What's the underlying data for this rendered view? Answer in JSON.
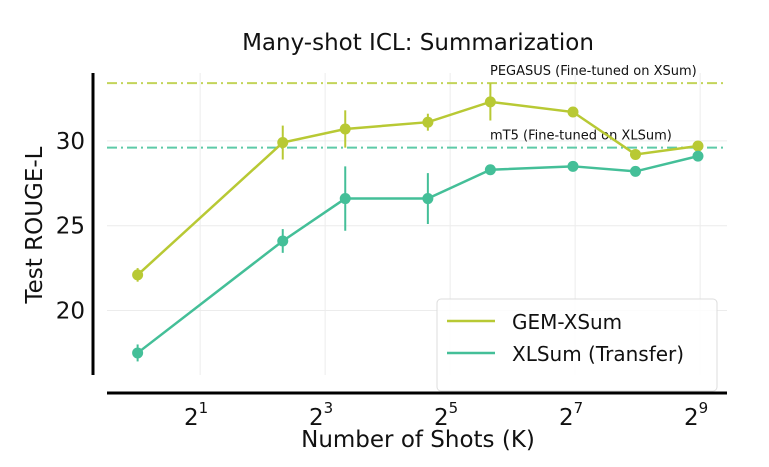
{
  "chart_data": {
    "type": "line",
    "title": "Many-shot ICL: Summarization",
    "xlabel": "Number of Shots (K)",
    "ylabel": "Test ROUGE-L",
    "xscale": "log2",
    "xlim_log2": [
      -0.49,
      9.43
    ],
    "ylim": [
      16.2,
      34.0
    ],
    "xticks": [
      {
        "base": "2",
        "exp": "1",
        "value": 2
      },
      {
        "base": "2",
        "exp": "3",
        "value": 8
      },
      {
        "base": "2",
        "exp": "5",
        "value": 32
      },
      {
        "base": "2",
        "exp": "7",
        "value": 128
      },
      {
        "base": "2",
        "exp": "9",
        "value": 512
      }
    ],
    "yticks": [
      20,
      25,
      30
    ],
    "grid": true,
    "legend_position": "bottom-right",
    "x": [
      1,
      5,
      10,
      25,
      50,
      125,
      250,
      500
    ],
    "series": [
      {
        "name": "GEM-XSum",
        "color": "#b8c934",
        "values": [
          22.1,
          29.9,
          30.7,
          31.1,
          32.3,
          31.7,
          29.2,
          29.7
        ],
        "errors": [
          0.4,
          1.0,
          1.1,
          0.5,
          1.1,
          0.2,
          0.2,
          0.2
        ]
      },
      {
        "name": "XLSum (Transfer)",
        "color": "#44bf98",
        "values": [
          17.5,
          24.1,
          26.6,
          26.6,
          28.3,
          28.5,
          28.2,
          29.1
        ],
        "errors": [
          0.5,
          0.7,
          1.9,
          1.5,
          0.2,
          0.2,
          0.2,
          0.2
        ]
      }
    ],
    "reference_lines": [
      {
        "label": "PEGASUS (Fine-tuned on XSum)",
        "value": 33.4,
        "color": "#c3d45a"
      },
      {
        "label": "mT5 (Fine-tuned on XLSum)",
        "value": 29.6,
        "color": "#5ecaa7"
      }
    ]
  }
}
